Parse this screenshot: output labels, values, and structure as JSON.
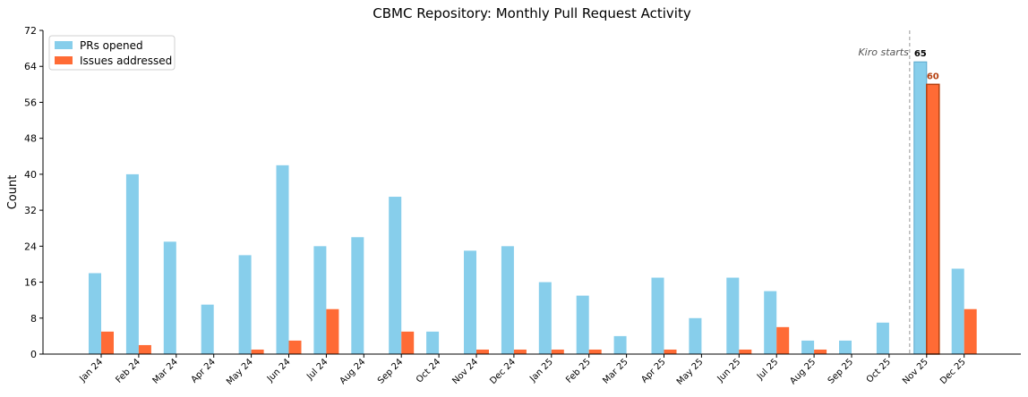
{
  "chart_data": {
    "type": "bar",
    "title": "CBMC Repository: Monthly Pull Request Activity",
    "ylabel": "Count",
    "xlabel": "",
    "ylim": [
      0,
      72
    ],
    "yticks": [
      0,
      8,
      16,
      24,
      32,
      40,
      48,
      56,
      64,
      72
    ],
    "grid": false,
    "legend_position": "top-left",
    "categories": [
      "Jan 24",
      "Feb 24",
      "Mar 24",
      "Apr 24",
      "May 24",
      "Jun 24",
      "Jul 24",
      "Aug 24",
      "Sep 24",
      "Oct 24",
      "Nov 24",
      "Dec 24",
      "Jan 25",
      "Feb 25",
      "Mar 25",
      "Apr 25",
      "May 25",
      "Jun 25",
      "Jul 25",
      "Aug 25",
      "Sep 25",
      "Oct 25",
      "Nov 25",
      "Dec 25"
    ],
    "series": [
      {
        "name": "PRs opened",
        "color": "#87CEEB",
        "values": [
          18,
          40,
          25,
          11,
          22,
          42,
          24,
          26,
          35,
          5,
          23,
          24,
          16,
          13,
          4,
          17,
          8,
          17,
          14,
          3,
          3,
          7,
          65,
          19
        ]
      },
      {
        "name": "Issues addressed",
        "color": "#FF6B35",
        "values": [
          5,
          2,
          0,
          0,
          1,
          3,
          10,
          0,
          5,
          0,
          1,
          1,
          1,
          1,
          0,
          1,
          0,
          1,
          6,
          1,
          0,
          0,
          60,
          10
        ]
      }
    ],
    "annotations": [
      {
        "text": "Kiro starts",
        "type": "vertical-line",
        "at_category": "Nov 25",
        "position": "before"
      }
    ],
    "highlight": {
      "category": "Nov 25",
      "labels": [
        "65",
        "60"
      ],
      "edge_color": "#B5400F",
      "label_colors": [
        "#000000",
        "#B5400F"
      ]
    }
  }
}
